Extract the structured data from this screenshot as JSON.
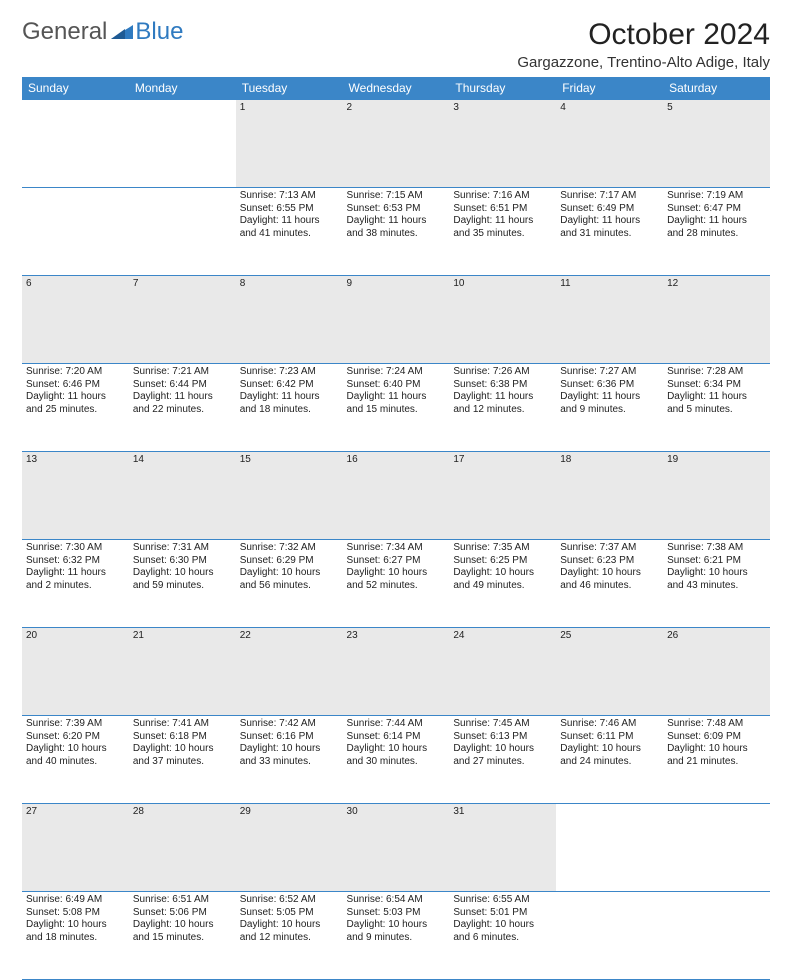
{
  "brand": {
    "part1": "General",
    "part2": "Blue"
  },
  "title": "October 2024",
  "location": "Gargazzone, Trentino-Alto Adige, Italy",
  "header_bg": "#3b86c8",
  "border_color": "#3b86c8",
  "daynum_bg": "#e9e9e9",
  "weekdays": [
    "Sunday",
    "Monday",
    "Tuesday",
    "Wednesday",
    "Thursday",
    "Friday",
    "Saturday"
  ],
  "weeks": [
    {
      "nums": [
        "",
        "",
        "1",
        "2",
        "3",
        "4",
        "5"
      ],
      "cells": [
        null,
        null,
        {
          "sunrise": "7:13 AM",
          "sunset": "6:55 PM",
          "daylight": "11 hours and 41 minutes."
        },
        {
          "sunrise": "7:15 AM",
          "sunset": "6:53 PM",
          "daylight": "11 hours and 38 minutes."
        },
        {
          "sunrise": "7:16 AM",
          "sunset": "6:51 PM",
          "daylight": "11 hours and 35 minutes."
        },
        {
          "sunrise": "7:17 AM",
          "sunset": "6:49 PM",
          "daylight": "11 hours and 31 minutes."
        },
        {
          "sunrise": "7:19 AM",
          "sunset": "6:47 PM",
          "daylight": "11 hours and 28 minutes."
        }
      ]
    },
    {
      "nums": [
        "6",
        "7",
        "8",
        "9",
        "10",
        "11",
        "12"
      ],
      "cells": [
        {
          "sunrise": "7:20 AM",
          "sunset": "6:46 PM",
          "daylight": "11 hours and 25 minutes."
        },
        {
          "sunrise": "7:21 AM",
          "sunset": "6:44 PM",
          "daylight": "11 hours and 22 minutes."
        },
        {
          "sunrise": "7:23 AM",
          "sunset": "6:42 PM",
          "daylight": "11 hours and 18 minutes."
        },
        {
          "sunrise": "7:24 AM",
          "sunset": "6:40 PM",
          "daylight": "11 hours and 15 minutes."
        },
        {
          "sunrise": "7:26 AM",
          "sunset": "6:38 PM",
          "daylight": "11 hours and 12 minutes."
        },
        {
          "sunrise": "7:27 AM",
          "sunset": "6:36 PM",
          "daylight": "11 hours and 9 minutes."
        },
        {
          "sunrise": "7:28 AM",
          "sunset": "6:34 PM",
          "daylight": "11 hours and 5 minutes."
        }
      ]
    },
    {
      "nums": [
        "13",
        "14",
        "15",
        "16",
        "17",
        "18",
        "19"
      ],
      "cells": [
        {
          "sunrise": "7:30 AM",
          "sunset": "6:32 PM",
          "daylight": "11 hours and 2 minutes."
        },
        {
          "sunrise": "7:31 AM",
          "sunset": "6:30 PM",
          "daylight": "10 hours and 59 minutes."
        },
        {
          "sunrise": "7:32 AM",
          "sunset": "6:29 PM",
          "daylight": "10 hours and 56 minutes."
        },
        {
          "sunrise": "7:34 AM",
          "sunset": "6:27 PM",
          "daylight": "10 hours and 52 minutes."
        },
        {
          "sunrise": "7:35 AM",
          "sunset": "6:25 PM",
          "daylight": "10 hours and 49 minutes."
        },
        {
          "sunrise": "7:37 AM",
          "sunset": "6:23 PM",
          "daylight": "10 hours and 46 minutes."
        },
        {
          "sunrise": "7:38 AM",
          "sunset": "6:21 PM",
          "daylight": "10 hours and 43 minutes."
        }
      ]
    },
    {
      "nums": [
        "20",
        "21",
        "22",
        "23",
        "24",
        "25",
        "26"
      ],
      "cells": [
        {
          "sunrise": "7:39 AM",
          "sunset": "6:20 PM",
          "daylight": "10 hours and 40 minutes."
        },
        {
          "sunrise": "7:41 AM",
          "sunset": "6:18 PM",
          "daylight": "10 hours and 37 minutes."
        },
        {
          "sunrise": "7:42 AM",
          "sunset": "6:16 PM",
          "daylight": "10 hours and 33 minutes."
        },
        {
          "sunrise": "7:44 AM",
          "sunset": "6:14 PM",
          "daylight": "10 hours and 30 minutes."
        },
        {
          "sunrise": "7:45 AM",
          "sunset": "6:13 PM",
          "daylight": "10 hours and 27 minutes."
        },
        {
          "sunrise": "7:46 AM",
          "sunset": "6:11 PM",
          "daylight": "10 hours and 24 minutes."
        },
        {
          "sunrise": "7:48 AM",
          "sunset": "6:09 PM",
          "daylight": "10 hours and 21 minutes."
        }
      ]
    },
    {
      "nums": [
        "27",
        "28",
        "29",
        "30",
        "31",
        "",
        ""
      ],
      "cells": [
        {
          "sunrise": "6:49 AM",
          "sunset": "5:08 PM",
          "daylight": "10 hours and 18 minutes."
        },
        {
          "sunrise": "6:51 AM",
          "sunset": "5:06 PM",
          "daylight": "10 hours and 15 minutes."
        },
        {
          "sunrise": "6:52 AM",
          "sunset": "5:05 PM",
          "daylight": "10 hours and 12 minutes."
        },
        {
          "sunrise": "6:54 AM",
          "sunset": "5:03 PM",
          "daylight": "10 hours and 9 minutes."
        },
        {
          "sunrise": "6:55 AM",
          "sunset": "5:01 PM",
          "daylight": "10 hours and 6 minutes."
        },
        null,
        null
      ]
    }
  ]
}
